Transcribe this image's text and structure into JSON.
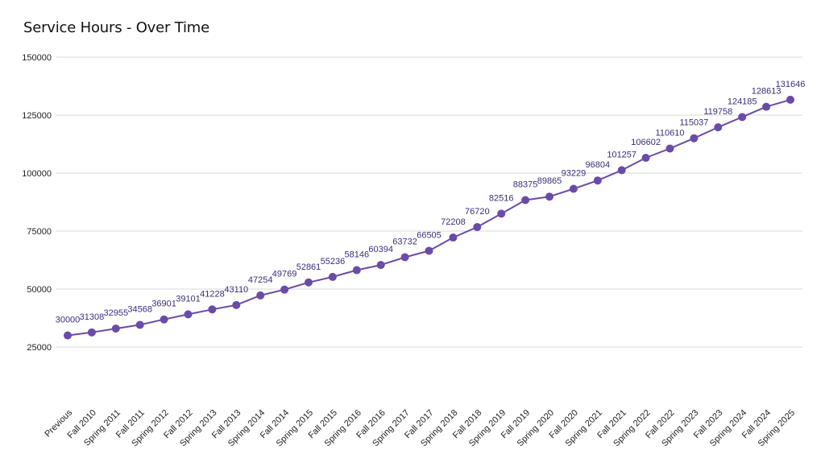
{
  "chart_data": {
    "type": "line",
    "title": "Service Hours - Over Time",
    "xlabel": "",
    "ylabel": "",
    "ylim": [
      25000,
      150000
    ],
    "yticks": [
      25000,
      50000,
      75000,
      100000,
      125000,
      150000
    ],
    "grid": true,
    "color": "#6a4ba8",
    "categories": [
      "Previous",
      "Fall 2010",
      "Spring 2011",
      "Fall 2011",
      "Spring 2012",
      "Fall 2012",
      "Spring 2013",
      "Fall 2013",
      "Spring 2014",
      "Fall 2014",
      "Spring 2015",
      "Fall 2015",
      "Spring 2016",
      "Fall 2016",
      "Spring 2017",
      "Fall 2017",
      "Spring 2018",
      "Fall 2018",
      "Spring 2019",
      "Fall 2019",
      "Spring 2020",
      "Fall 2020",
      "Spring 2021",
      "Fall 2021",
      "Spring 2022",
      "Fall 2022",
      "Spring 2023",
      "Fall 2023",
      "Spring 2024",
      "Fall 2024",
      "Spring 2025"
    ],
    "values": [
      30000,
      31308,
      32955,
      34568,
      36901,
      39101,
      41228,
      43110,
      47254,
      49769,
      52861,
      55236,
      58146,
      60394,
      63732,
      66505,
      72208,
      76720,
      82516,
      88375,
      89865,
      93229,
      96804,
      101257,
      106602,
      110610,
      115037,
      119758,
      124185,
      128613,
      131646
    ]
  }
}
